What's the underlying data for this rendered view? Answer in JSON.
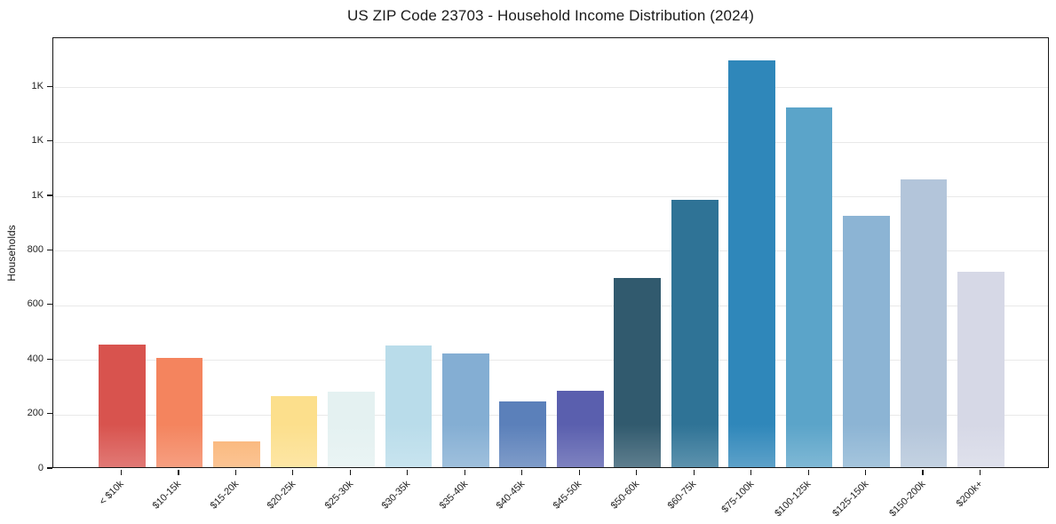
{
  "chart_data": {
    "type": "bar",
    "title": "US ZIP Code 23703 - Household Income Distribution (2024)",
    "xlabel": "",
    "ylabel": "Households",
    "categories": [
      "< $10k",
      "$10-15k",
      "$15-20k",
      "$20-25k",
      "$25-30k",
      "$30-35k",
      "$35-40k",
      "$40-45k",
      "$45-50k",
      "$50-60k",
      "$60-75k",
      "$75-100k",
      "$100-125k",
      "$125-150k",
      "$150-200k",
      "$200k+"
    ],
    "values": [
      450,
      400,
      95,
      260,
      278,
      446,
      417,
      242,
      281,
      693,
      982,
      1493,
      1321,
      921,
      1055,
      718
    ],
    "bar_colors": [
      "#d8534e",
      "#f4845e",
      "#fab374",
      "#fcdf8c",
      "#e4f1f1",
      "#b9dcea",
      "#84aed3",
      "#5b80ba",
      "#5a5fae",
      "#315a6e",
      "#2f7396",
      "#2f87ba",
      "#5ba4c9",
      "#8cb4d4",
      "#b3c5da",
      "#d6d8e6"
    ],
    "ylim": [
      0,
      1580
    ],
    "yticks": [
      {
        "value": 0,
        "label": "0"
      },
      {
        "value": 200,
        "label": "200"
      },
      {
        "value": 400,
        "label": "400"
      },
      {
        "value": 600,
        "label": "600"
      },
      {
        "value": 800,
        "label": "800"
      },
      {
        "value": 1000,
        "label": "1K"
      },
      {
        "value": 1200,
        "label": "1K"
      },
      {
        "value": 1400,
        "label": "1K"
      }
    ],
    "grid": "horizontal",
    "legend": "none",
    "colors": {
      "background": "#ffffff",
      "spine": "#151515",
      "grid": "#e9e9e9",
      "text": "#1f1f1f"
    }
  }
}
